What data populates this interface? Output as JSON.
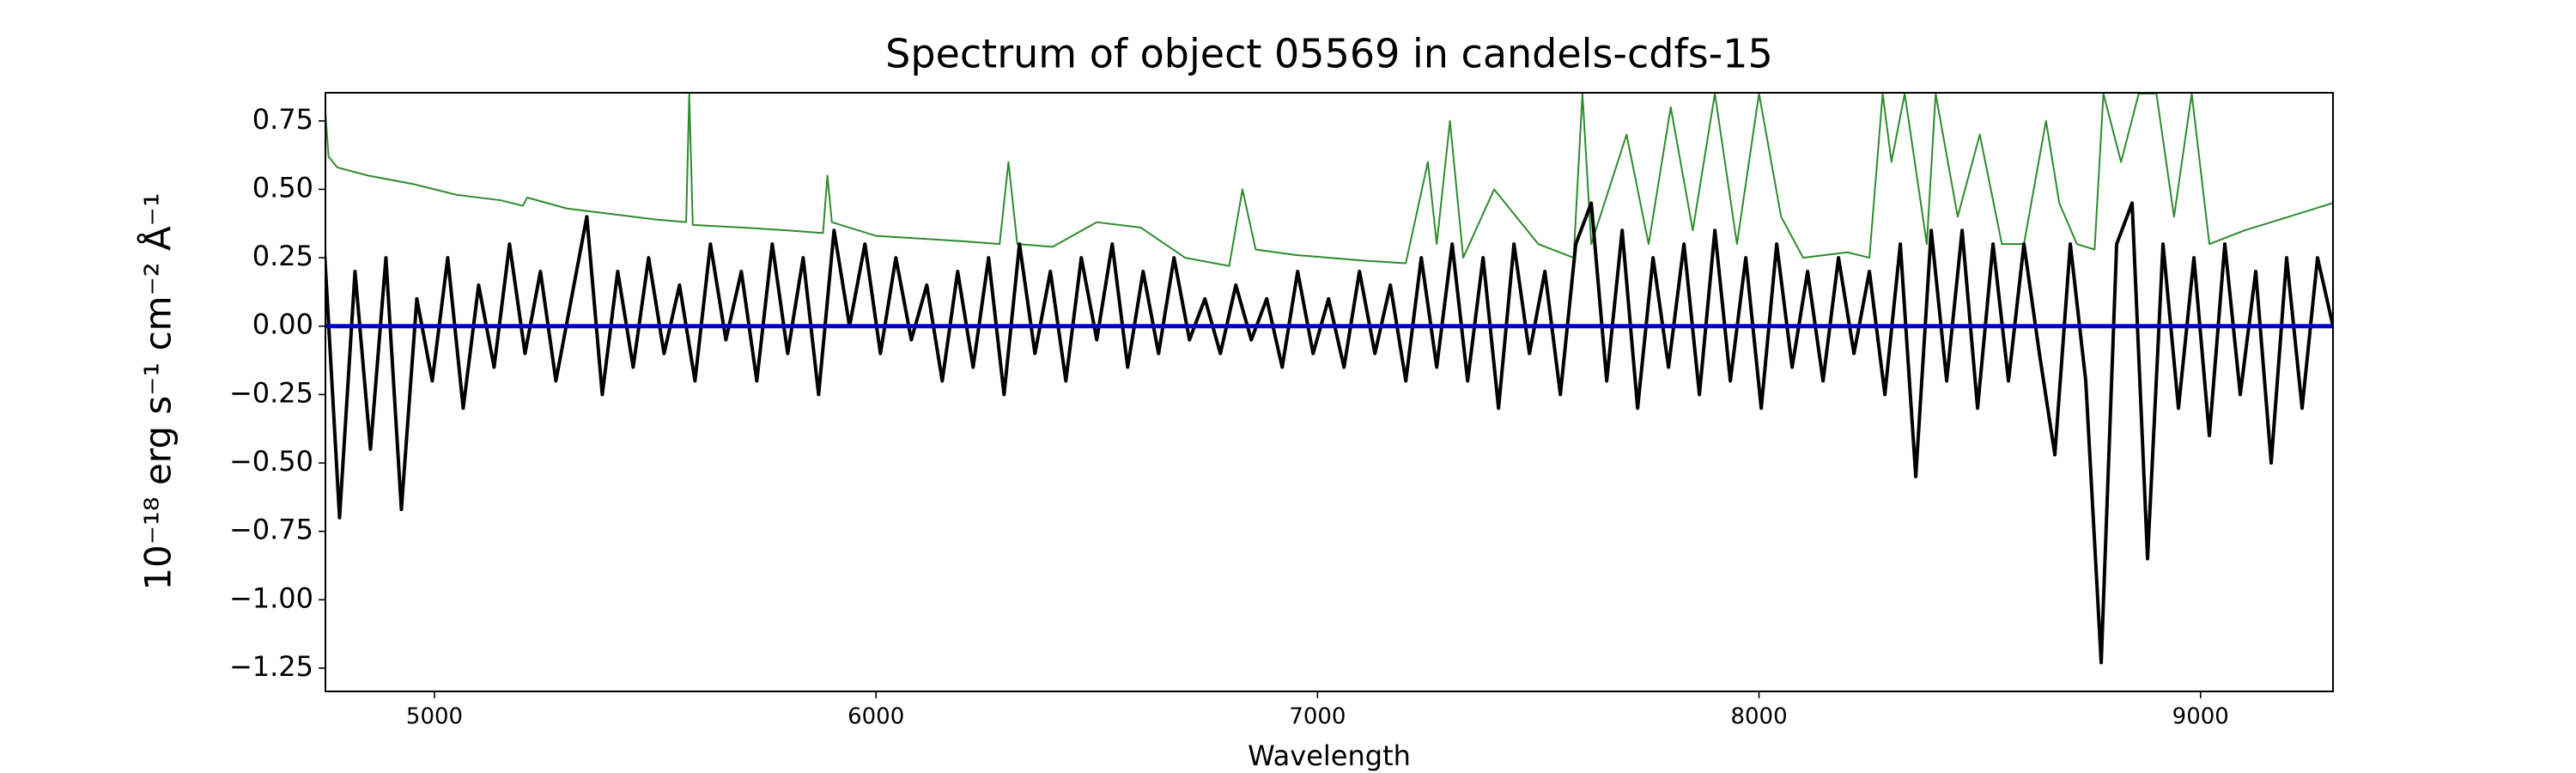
{
  "chart_data": {
    "type": "line",
    "title": "Spectrum of object 05569 in candels-cdfs-15",
    "xlabel": "Wavelength",
    "ylabel": "10⁻¹⁸ erg s⁻¹ cm⁻² Å⁻¹",
    "xlim": [
      4753,
      9300
    ],
    "ylim": [
      -1.335,
      0.853
    ],
    "xticks": [
      5000,
      6000,
      7000,
      8000,
      9000
    ],
    "yticks": [
      {
        "value": -1.25,
        "label": "−1.25"
      },
      {
        "value": -1.0,
        "label": "−1.00"
      },
      {
        "value": -0.75,
        "label": "−0.75"
      },
      {
        "value": -0.5,
        "label": "−0.50"
      },
      {
        "value": -0.25,
        "label": "−0.25"
      },
      {
        "value": 0,
        "label": "0.00"
      },
      {
        "value": 0.25,
        "label": "0.25"
      },
      {
        "value": 0.5,
        "label": "0.50"
      },
      {
        "value": 0.75,
        "label": "0.75"
      }
    ],
    "series": [
      {
        "color": "#2e8b2e",
        "width": 1,
        "x": [
          4750,
          4760,
          4780,
          4850,
          4950,
          5050,
          5150,
          5200,
          5210,
          5300,
          5400,
          5500,
          5570,
          5577,
          5585,
          5700,
          5800,
          5880,
          5890,
          5900,
          6000,
          6100,
          6200,
          6280,
          6300,
          6320,
          6400,
          6500,
          6600,
          6700,
          6800,
          6830,
          6860,
          6950,
          7100,
          7200,
          7250,
          7270,
          7300,
          7330,
          7400,
          7500,
          7580,
          7600,
          7620,
          7700,
          7750,
          7800,
          7850,
          7900,
          7950,
          8000,
          8050,
          8100,
          8200,
          8250,
          8280,
          8300,
          8330,
          8380,
          8400,
          8450,
          8500,
          8550,
          8600,
          8650,
          8680,
          8720,
          8760,
          8780,
          8820,
          8860,
          8900,
          8940,
          8980,
          9020,
          9100,
          9200,
          9300
        ],
        "values": [
          0.85,
          0.62,
          0.58,
          0.55,
          0.52,
          0.48,
          0.46,
          0.44,
          0.47,
          0.43,
          0.41,
          0.39,
          0.38,
          0.85,
          0.37,
          0.36,
          0.35,
          0.34,
          0.55,
          0.38,
          0.33,
          0.32,
          0.31,
          0.3,
          0.6,
          0.3,
          0.29,
          0.38,
          0.36,
          0.25,
          0.22,
          0.5,
          0.28,
          0.26,
          0.24,
          0.23,
          0.6,
          0.3,
          0.75,
          0.25,
          0.5,
          0.3,
          0.25,
          0.85,
          0.3,
          0.7,
          0.3,
          0.8,
          0.35,
          0.85,
          0.3,
          0.85,
          0.4,
          0.25,
          0.27,
          0.25,
          0.85,
          0.6,
          0.85,
          0.3,
          0.85,
          0.4,
          0.7,
          0.3,
          0.3,
          0.75,
          0.45,
          0.3,
          0.28,
          0.85,
          0.6,
          0.85,
          0.85,
          0.4,
          0.85,
          0.3,
          0.35,
          0.4,
          0.45
        ]
      },
      {
        "color": "#000000",
        "width": 2,
        "x": [
          4750,
          4785,
          4820,
          4855,
          4890,
          4925,
          4960,
          4995,
          5030,
          5065,
          5100,
          5135,
          5170,
          5205,
          5240,
          5275,
          5310,
          5345,
          5380,
          5415,
          5450,
          5485,
          5520,
          5555,
          5590,
          5625,
          5660,
          5695,
          5730,
          5765,
          5800,
          5835,
          5870,
          5905,
          5940,
          5975,
          6010,
          6045,
          6080,
          6115,
          6150,
          6185,
          6220,
          6255,
          6290,
          6325,
          6360,
          6395,
          6430,
          6465,
          6500,
          6535,
          6570,
          6605,
          6640,
          6675,
          6710,
          6745,
          6780,
          6815,
          6850,
          6885,
          6920,
          6955,
          6990,
          7025,
          7060,
          7095,
          7130,
          7165,
          7200,
          7235,
          7270,
          7305,
          7340,
          7375,
          7410,
          7445,
          7480,
          7515,
          7550,
          7585,
          7620,
          7655,
          7690,
          7725,
          7760,
          7795,
          7830,
          7865,
          7900,
          7935,
          7970,
          8005,
          8040,
          8075,
          8110,
          8145,
          8180,
          8215,
          8250,
          8285,
          8320,
          8355,
          8390,
          8425,
          8460,
          8495,
          8530,
          8565,
          8600,
          8635,
          8670,
          8705,
          8740,
          8775,
          8810,
          8845,
          8880,
          8915,
          8950,
          8985,
          9020,
          9055,
          9090,
          9125,
          9160,
          9195,
          9230,
          9265,
          9300
        ],
        "values": [
          0.3,
          -0.7,
          0.2,
          -0.45,
          0.25,
          -0.67,
          0.1,
          -0.2,
          0.25,
          -0.3,
          0.15,
          -0.15,
          0.3,
          -0.1,
          0.2,
          -0.2,
          0.1,
          0.4,
          -0.25,
          0.2,
          -0.15,
          0.25,
          -0.1,
          0.15,
          -0.2,
          0.3,
          -0.05,
          0.2,
          -0.2,
          0.3,
          -0.1,
          0.25,
          -0.25,
          0.35,
          0.0,
          0.3,
          -0.1,
          0.25,
          -0.05,
          0.15,
          -0.2,
          0.2,
          -0.15,
          0.25,
          -0.25,
          0.3,
          -0.1,
          0.2,
          -0.2,
          0.25,
          -0.05,
          0.3,
          -0.15,
          0.2,
          -0.1,
          0.25,
          -0.05,
          0.1,
          -0.1,
          0.15,
          -0.05,
          0.1,
          -0.15,
          0.2,
          -0.1,
          0.1,
          -0.15,
          0.2,
          -0.1,
          0.15,
          -0.2,
          0.25,
          -0.15,
          0.3,
          -0.2,
          0.25,
          -0.3,
          0.3,
          -0.1,
          0.2,
          -0.25,
          0.3,
          0.45,
          -0.2,
          0.35,
          -0.3,
          0.25,
          -0.15,
          0.3,
          -0.25,
          0.35,
          -0.2,
          0.25,
          -0.3,
          0.3,
          -0.15,
          0.2,
          -0.2,
          0.25,
          -0.1,
          0.2,
          -0.25,
          0.3,
          -0.55,
          0.35,
          -0.2,
          0.35,
          -0.3,
          0.3,
          -0.2,
          0.3,
          -0.1,
          -0.47,
          0.3,
          -0.2,
          -1.23,
          0.3,
          0.45,
          -0.85,
          0.3,
          -0.3,
          0.25,
          -0.4,
          0.3,
          -0.25,
          0.2,
          -0.5,
          0.25,
          -0.3,
          0.25,
          0.0
        ]
      },
      {
        "color": "#0000cc",
        "width": 2.5,
        "x": [
          4750,
          9300
        ],
        "values": [
          0,
          0
        ]
      }
    ]
  }
}
